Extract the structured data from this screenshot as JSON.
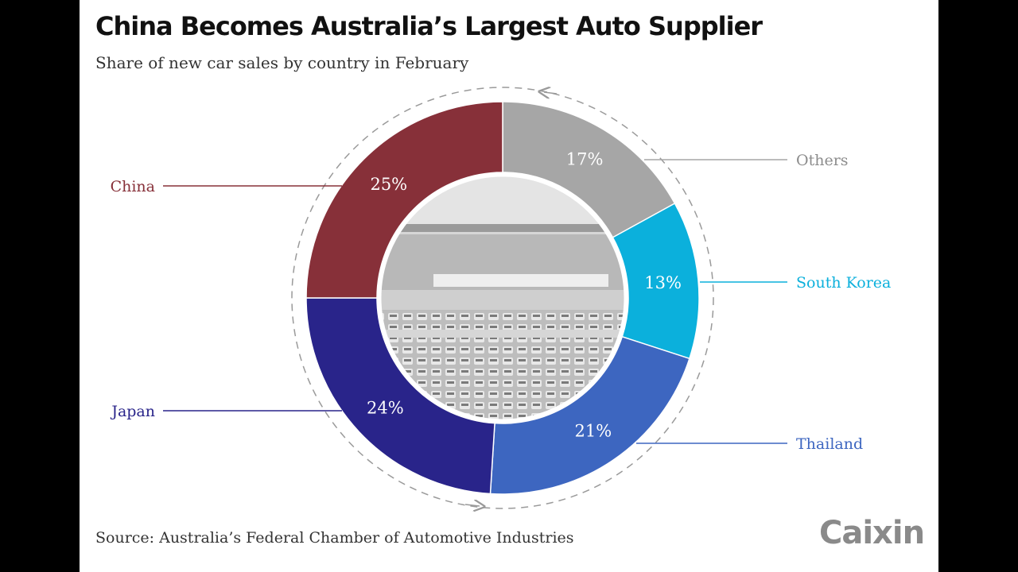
{
  "title": "China Becomes Australia’s Largest Auto Supplier",
  "subtitle": "Share of new car sales by country in February",
  "source": "Source: Australia’s Federal Chamber of Automotive Industries",
  "logo": "Caixin",
  "chart_data": {
    "type": "pie",
    "style": "donut",
    "title": "China Becomes Australia’s Largest Auto Supplier",
    "subtitle": "Share of new car sales by country in February",
    "unit": "%",
    "order": "clockwise from top",
    "slices": [
      {
        "label": "Others",
        "value": 17,
        "value_label": "17%",
        "color": "#a6a6a6"
      },
      {
        "label": "South Korea",
        "value": 13,
        "value_label": "13%",
        "color": "#0bb0dc"
      },
      {
        "label": "Thailand",
        "value": 21,
        "value_label": "21%",
        "color": "#3d66c0"
      },
      {
        "label": "Japan",
        "value": 24,
        "value_label": "24%",
        "color": "#29248a"
      },
      {
        "label": "China",
        "value": 25,
        "value_label": "25%",
        "color": "#873039"
      }
    ]
  }
}
